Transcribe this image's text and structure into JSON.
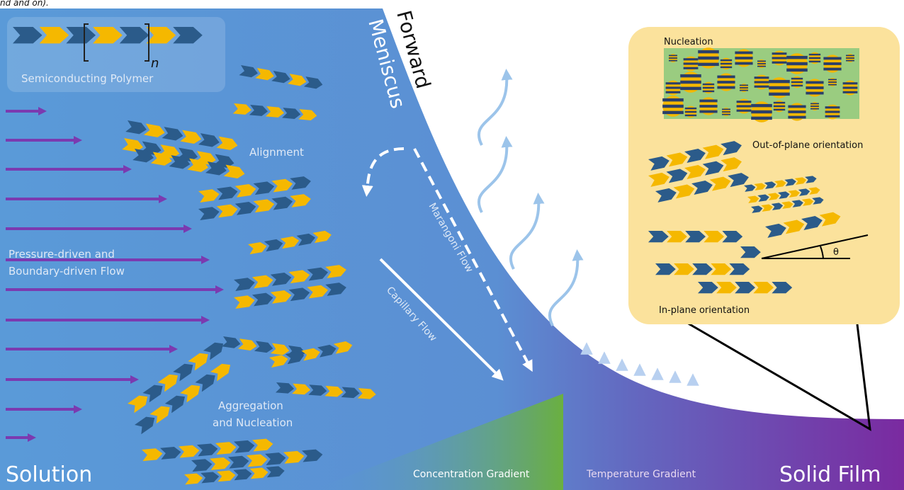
{
  "header": {
    "fragment": "nd and on)."
  },
  "main": {
    "forward": "Forward",
    "meniscus": "Meniscus",
    "polymer": "Semiconducting Polymer",
    "repeat": "n",
    "alignment": "Alignment",
    "flow": [
      "Pressure-driven and",
      "Boundary-driven Flow"
    ],
    "marangoni": "Marangoni Flow",
    "capillary": "Capillary Flow",
    "aggregation": [
      "Aggregation",
      "and Nucleation"
    ],
    "solution": "Solution",
    "concentration": "Concentration Gradient",
    "temperature": "Temperature Gradient",
    "solid_film": "Solid Film"
  },
  "inset": {
    "nucleation": "Nucleation",
    "out_of_plane": "Out-of-plane orientation",
    "in_plane": "In-plane orientation",
    "angle": "θ"
  }
}
